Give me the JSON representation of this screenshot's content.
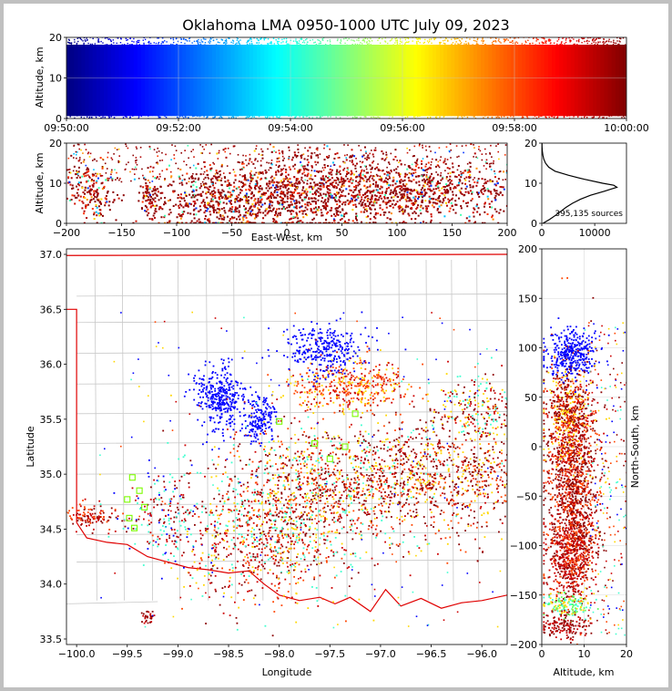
{
  "chart_data": [
    {
      "panel": "time-altitude",
      "type": "scatter",
      "title": "Oklahoma LMA 0950-1000 UTC July 09, 2023",
      "ylabel": "Altitude, km",
      "ylim": [
        0,
        20
      ],
      "yticks": [
        "0",
        "10",
        "20"
      ],
      "xticks": [
        "09:50:00",
        "09:52:00",
        "09:54:00",
        "09:56:00",
        "09:58:00",
        "10:00:00"
      ],
      "xlim_minutes": [
        0,
        10
      ],
      "colormap": "jet",
      "color_encodes": "time",
      "grid": true
    },
    {
      "panel": "east-west-altitude",
      "type": "scatter",
      "xlabel": "East-West, km",
      "ylabel": "Altitude, km",
      "xlim": [
        -200,
        200
      ],
      "ylim": [
        0,
        20
      ],
      "xticks": [
        "−200",
        "−150",
        "−100",
        "−50",
        "0",
        "50",
        "100",
        "150",
        "200"
      ],
      "yticks": [
        "0",
        "10",
        "20"
      ],
      "clusters": [
        {
          "x": -180,
          "y": 8,
          "spread_x": 14,
          "spread_y": 4
        },
        {
          "x": -125,
          "y": 7,
          "spread_x": 6,
          "spread_y": 3
        },
        {
          "x": -60,
          "y": 6,
          "spread_x": 40,
          "spread_y": 4
        },
        {
          "x": 10,
          "y": 8,
          "spread_x": 50,
          "spread_y": 5
        },
        {
          "x": 110,
          "y": 8,
          "spread_x": 70,
          "spread_y": 4
        }
      ]
    },
    {
      "panel": "altitude-histogram",
      "type": "line",
      "annotation": "395,135 sources",
      "xlim": [
        0,
        16000
      ],
      "ylim": [
        0,
        20
      ],
      "xticks": [
        "0",
        "10000"
      ],
      "yticks": [
        "0",
        "10",
        "20"
      ],
      "altitude": [
        0,
        1,
        2,
        3,
        4,
        5,
        6,
        7,
        8,
        8.5,
        9,
        9.5,
        10,
        11,
        12,
        13,
        14,
        15,
        16,
        17,
        18,
        19,
        20
      ],
      "counts": [
        200,
        1500,
        2600,
        3600,
        4600,
        5800,
        7300,
        9200,
        11800,
        13000,
        14200,
        13600,
        11500,
        8000,
        5000,
        2500,
        1300,
        700,
        380,
        200,
        100,
        60,
        30
      ]
    },
    {
      "panel": "plan-view",
      "type": "scatter",
      "xlabel": "Longitude",
      "ylabel": "Latitude",
      "xlim": [
        -100.1,
        -95.75
      ],
      "ylim": [
        33.45,
        37.05
      ],
      "xticks": [
        "−100.0",
        "−99.5",
        "−99.0",
        "−98.5",
        "−98.0",
        "−97.5",
        "−97.0",
        "−96.5",
        "−96.0"
      ],
      "yticks": [
        "33.5",
        "34.0",
        "34.5",
        "35.0",
        "35.5",
        "36.0",
        "36.5",
        "37.0"
      ],
      "stations": [
        {
          "lon": -99.45,
          "lat": 34.97
        },
        {
          "lon": -99.38,
          "lat": 34.85
        },
        {
          "lon": -99.5,
          "lat": 34.77
        },
        {
          "lon": -99.33,
          "lat": 34.7
        },
        {
          "lon": -99.48,
          "lat": 34.6
        },
        {
          "lon": -99.43,
          "lat": 34.51
        },
        {
          "lon": -98.0,
          "lat": 35.48
        },
        {
          "lon": -97.65,
          "lat": 35.28
        },
        {
          "lon": -97.5,
          "lat": 35.14
        },
        {
          "lon": -97.35,
          "lat": 35.25
        },
        {
          "lon": -97.25,
          "lat": 35.55
        }
      ]
    },
    {
      "panel": "altitude-north-south",
      "type": "scatter",
      "xlabel": "Altitude, km",
      "ylabel": "North-South, km",
      "xlim": [
        0,
        20
      ],
      "ylim": [
        -200,
        200
      ],
      "xticks": [
        "0",
        "10",
        "20"
      ],
      "yticks": [
        "−200",
        "−150",
        "−100",
        "−50",
        "0",
        "50",
        "100",
        "150",
        "200"
      ]
    }
  ]
}
